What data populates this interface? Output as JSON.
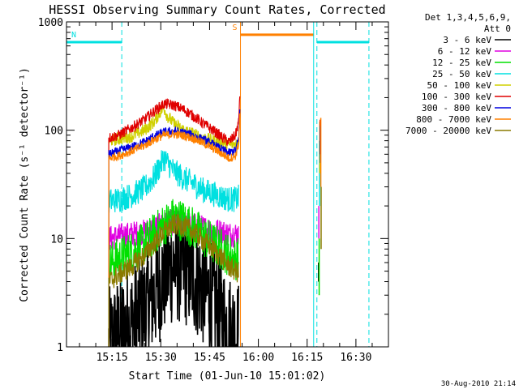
{
  "chart_data": {
    "type": "line",
    "title": "HESSI Observing Summary Count Rates, Corrected",
    "xlabel": "Start Time (01-Jun-10 15:01:02)",
    "ylabel": "Corrected Count Rate (s⁻¹ detector⁻¹)",
    "footer_date": "30-Aug-2010 21:14",
    "y_scale": "log",
    "ylim": [
      1,
      1000
    ],
    "xlim_minutes": [
      0,
      99
    ],
    "yticks": [
      "1",
      "10",
      "100",
      "1000"
    ],
    "xticks": [
      {
        "minute": 14,
        "label": "15:15"
      },
      {
        "minute": 29,
        "label": "15:30"
      },
      {
        "minute": 44,
        "label": "15:45"
      },
      {
        "minute": 59,
        "label": "16:00"
      },
      {
        "minute": 74,
        "label": "16:15"
      },
      {
        "minute": 89,
        "label": "16:30"
      }
    ],
    "legend": {
      "placement": "right",
      "header": [
        "Det 1,3,4,5,6,9,",
        "Att 0"
      ],
      "entries": [
        {
          "label": "3 - 6 keV",
          "color": "#000000"
        },
        {
          "label": "6 - 12 keV",
          "color": "#e000e0"
        },
        {
          "label": "12 - 25 keV",
          "color": "#00e000"
        },
        {
          "label": "25 - 50 keV",
          "color": "#00e0e0"
        },
        {
          "label": "50 - 100 keV",
          "color": "#d0d000"
        },
        {
          "label": "100 - 300 keV",
          "color": "#e00000"
        },
        {
          "label": "300 - 800 keV",
          "color": "#0000e0"
        },
        {
          "label": "800 - 7000 keV",
          "color": "#ff8000"
        },
        {
          "label": "7000 - 20000 keV",
          "color": "#8a7a00"
        }
      ]
    },
    "flags": [
      {
        "label": "N",
        "color": "#00e0e0",
        "start_minute": 0,
        "end_minute": 17,
        "level": 650
      },
      {
        "label": "S",
        "color": "#ff8000",
        "start_minute": 53.5,
        "end_minute": 76,
        "level": 760
      },
      {
        "label": "",
        "color": "#00e0e0",
        "start_minute": 77,
        "end_minute": 93,
        "level": 650
      }
    ],
    "vlines": [
      {
        "minute": 0,
        "color": "#00e0e0",
        "style": "solid"
      },
      {
        "minute": 17,
        "color": "#00e0e0",
        "style": "dashed"
      },
      {
        "minute": 53.5,
        "color": "#ff8000",
        "style": "solid"
      },
      {
        "minute": 76,
        "color": "#00e0e0",
        "style": "solid"
      },
      {
        "minute": 77,
        "color": "#00e0e0",
        "style": "dashed"
      },
      {
        "minute": 93,
        "color": "#00e0e0",
        "style": "dashed"
      }
    ],
    "series": [
      {
        "name": "3 - 6 keV",
        "color": "#000000",
        "noise": 0.55,
        "x": [
          13,
          16,
          20,
          24,
          27,
          30,
          33,
          36,
          39,
          42,
          45,
          48,
          50,
          52,
          53
        ],
        "y": [
          1,
          1.3,
          1.6,
          2.2,
          3.0,
          4.5,
          5.8,
          5.5,
          4.6,
          3.5,
          2.6,
          1.8,
          1.4,
          1.3,
          1.2
        ]
      },
      {
        "name": "6 - 12 keV",
        "color": "#e000e0",
        "noise": 0.12,
        "x": [
          13,
          16,
          20,
          24,
          27,
          30,
          33,
          36,
          39,
          42,
          45,
          48,
          50,
          52,
          53
        ],
        "y": [
          10,
          10.5,
          11,
          11.5,
          12.5,
          13.5,
          14,
          13.8,
          13.2,
          12.5,
          12,
          11.5,
          11,
          11,
          11
        ]
      },
      {
        "name": "12 - 25 keV",
        "color": "#00e000",
        "noise": 0.2,
        "x": [
          13,
          16,
          20,
          24,
          27,
          30,
          33,
          36,
          39,
          42,
          45,
          48,
          50,
          52,
          53
        ],
        "y": [
          6,
          6.5,
          7.5,
          9,
          11,
          13.5,
          15.5,
          14.5,
          12.5,
          10.5,
          9,
          7.8,
          7,
          6.5,
          6.5
        ]
      },
      {
        "name": "25 - 50 keV",
        "color": "#00e0e0",
        "noise": 0.12,
        "x": [
          13,
          16,
          20,
          24,
          27,
          29,
          30,
          31,
          33,
          36,
          39,
          42,
          45,
          48,
          50,
          52,
          53
        ],
        "y": [
          22,
          23,
          25,
          29,
          37,
          48,
          56,
          50,
          42,
          36,
          32,
          28,
          26,
          24,
          23,
          23,
          24
        ]
      },
      {
        "name": "50 - 100 keV",
        "color": "#d0d000",
        "noise": 0.06,
        "x": [
          13,
          16,
          20,
          24,
          27,
          29,
          30,
          31,
          33,
          36,
          39,
          42,
          45,
          48,
          50,
          52,
          53
        ],
        "y": [
          80,
          83,
          88,
          100,
          120,
          150,
          160,
          135,
          115,
          100,
          92,
          85,
          80,
          76,
          74,
          75,
          78
        ]
      },
      {
        "name": "100 - 300 keV",
        "color": "#e00000",
        "noise": 0.05,
        "x": [
          13,
          16,
          20,
          24,
          27,
          30,
          33,
          36,
          39,
          42,
          45,
          48,
          50,
          52,
          53,
          53.4
        ],
        "y": [
          85,
          90,
          105,
          125,
          150,
          175,
          170,
          155,
          135,
          115,
          100,
          85,
          78,
          90,
          120,
          250
        ]
      },
      {
        "name": "300 - 800 keV",
        "color": "#0000e0",
        "noise": 0.04,
        "x": [
          13,
          16,
          20,
          24,
          27,
          30,
          33,
          36,
          39,
          42,
          45,
          48,
          50,
          52,
          53,
          53.4
        ],
        "y": [
          60,
          64,
          70,
          78,
          88,
          96,
          98,
          95,
          90,
          82,
          74,
          66,
          62,
          65,
          85,
          170
        ]
      },
      {
        "name": "800 - 7000 keV",
        "color": "#ff8000",
        "noise": 0.04,
        "x": [
          13,
          16,
          20,
          24,
          27,
          30,
          33,
          36,
          39,
          42,
          45,
          48,
          50,
          52,
          53,
          53.4
        ],
        "y": [
          55,
          58,
          64,
          72,
          82,
          90,
          92,
          89,
          84,
          76,
          68,
          60,
          55,
          58,
          75,
          150
        ]
      },
      {
        "name": "7000 - 20000 keV",
        "color": "#8a7a00",
        "noise": 0.1,
        "x": [
          13,
          16,
          20,
          24,
          27,
          30,
          33,
          36,
          39,
          42,
          45,
          48,
          50,
          52,
          53
        ],
        "y": [
          4,
          4.6,
          5.5,
          7,
          9,
          11.5,
          13.5,
          13,
          11.5,
          9.5,
          8,
          6.5,
          5.5,
          5,
          4.8
        ]
      }
    ],
    "late_spikes": [
      {
        "color": "#000000",
        "x": 77.5,
        "y": [
          4,
          6
        ]
      },
      {
        "color": "#e000e0",
        "x": 77.6,
        "y": [
          10,
          20
        ]
      },
      {
        "color": "#00e000",
        "x": 77.7,
        "y": [
          3,
          10
        ]
      },
      {
        "color": "#00e0e0",
        "x": 77.8,
        "y": [
          20,
          80
        ]
      },
      {
        "color": "#d0d000",
        "x": 77.9,
        "y": [
          40,
          120
        ]
      },
      {
        "color": "#e00000",
        "x": 78.0,
        "y": [
          60,
          125
        ]
      },
      {
        "color": "#0000e0",
        "x": 78.1,
        "y": [
          50,
          110
        ]
      },
      {
        "color": "#ff8000",
        "x": 78.2,
        "y": [
          30,
          130
        ]
      },
      {
        "color": "#8a7a00",
        "x": 78.3,
        "y": [
          8,
          30
        ]
      }
    ]
  }
}
